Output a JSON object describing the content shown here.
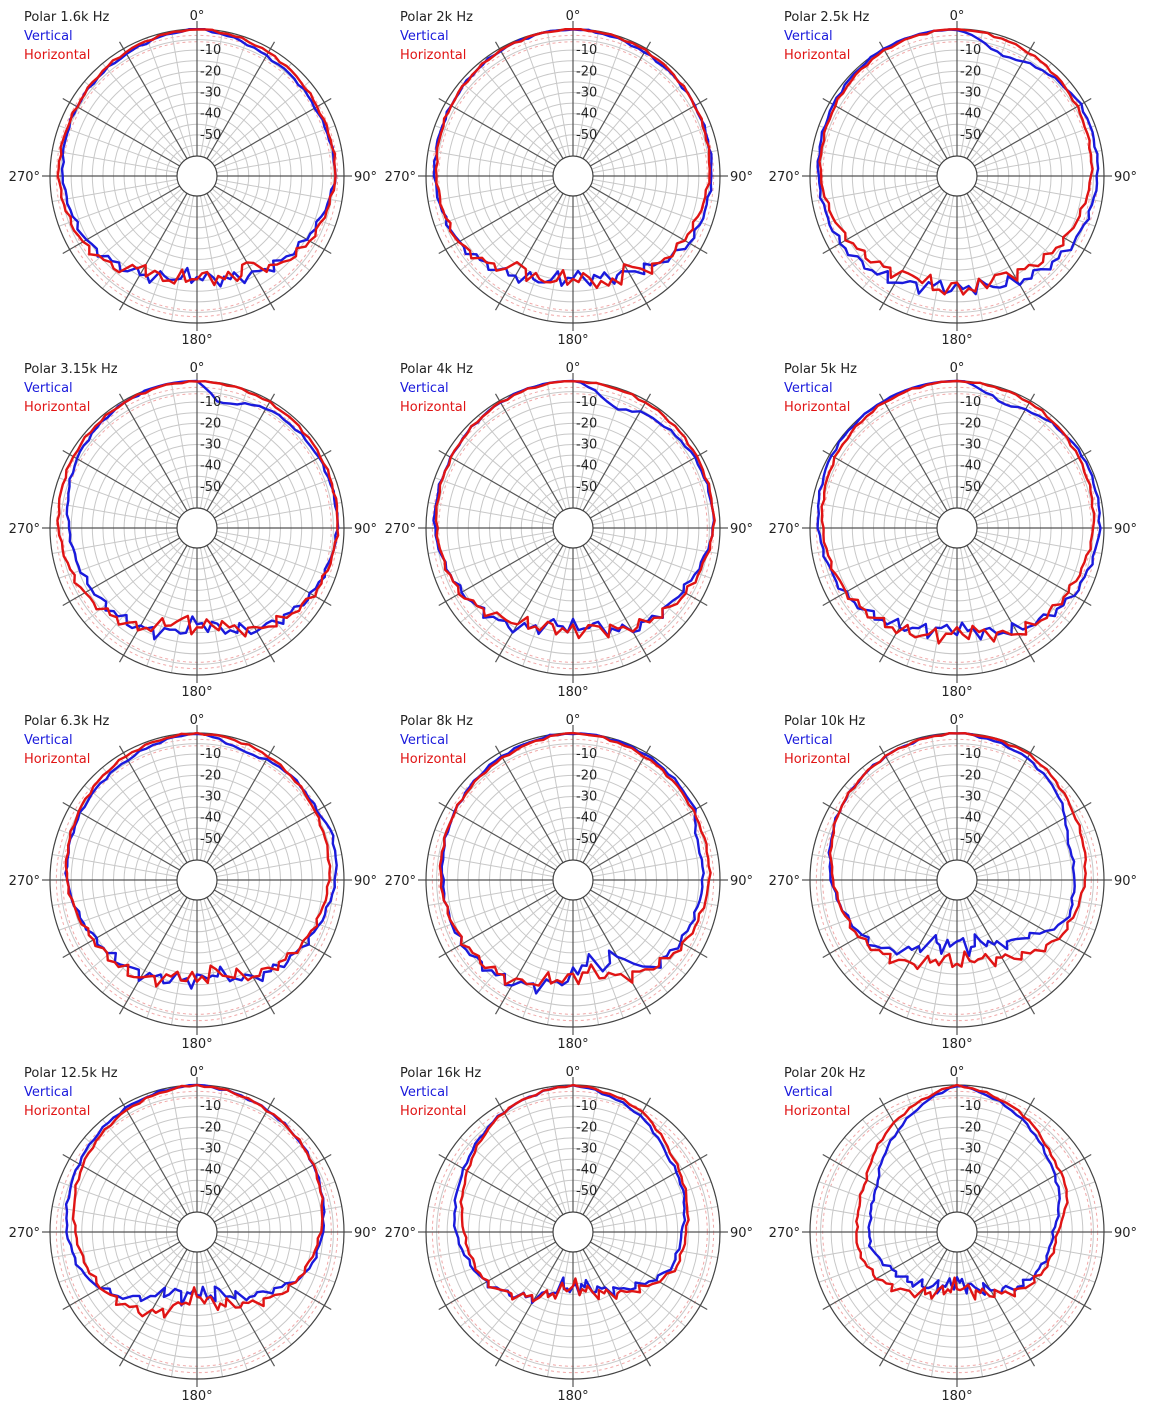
{
  "colors": {
    "vertical": "#1a1adc",
    "horizontal": "#e01414",
    "grid": "#c8c8c8",
    "spoke": "#555555",
    "dashed": "#f0a8a8",
    "frame": "#444444"
  },
  "angle_labels": {
    "top": "0°",
    "right": "90°",
    "bottom": "180°",
    "left": "270°"
  },
  "ring_labels": [
    "-10",
    "-20",
    "-30",
    "-40",
    "-50"
  ],
  "chart_data": [
    {
      "type": "polar",
      "title": "Polar 1.6k Hz",
      "r_range": [
        -60,
        0
      ],
      "series": [
        {
          "name": "Vertical",
          "key": "vertical",
          "angles": [
            0,
            30,
            60,
            90,
            120,
            150,
            170,
            180,
            190,
            210,
            240,
            270,
            300,
            330
          ],
          "values": [
            0,
            -4,
            -5,
            -4,
            -10,
            -16,
            -20,
            -22,
            -21,
            -16,
            -9,
            -6,
            -4,
            -3
          ]
        },
        {
          "name": "Horizontal",
          "key": "horizontal",
          "angles": [
            0,
            30,
            60,
            90,
            120,
            140,
            150,
            160,
            170,
            180,
            190,
            200,
            210,
            220,
            240,
            270,
            300,
            330
          ],
          "values": [
            0,
            -2,
            -4,
            -4,
            -8,
            -13,
            -22,
            -18,
            -21,
            -22,
            -20,
            -18,
            -20,
            -12,
            -7,
            -4,
            -4,
            -2
          ]
        }
      ]
    },
    {
      "type": "polar",
      "title": "Polar 2k Hz",
      "r_range": [
        -60,
        0
      ],
      "series": [
        {
          "name": "Vertical",
          "key": "vertical",
          "angles": [
            0,
            30,
            60,
            90,
            120,
            150,
            180,
            210,
            240,
            270,
            300,
            330
          ],
          "values": [
            0,
            -2,
            -3,
            -4,
            -6,
            -17,
            -22,
            -15,
            -7,
            -4,
            -3,
            -1
          ]
        },
        {
          "name": "Horizontal",
          "key": "horizontal",
          "angles": [
            0,
            30,
            60,
            90,
            120,
            140,
            150,
            160,
            170,
            180,
            190,
            200,
            210,
            220,
            240,
            270,
            300,
            330
          ],
          "values": [
            0,
            -1,
            -3,
            -5,
            -9,
            -12,
            -20,
            -14,
            -20,
            -21,
            -20,
            -17,
            -21,
            -13,
            -7,
            -5,
            -3,
            -1
          ]
        }
      ]
    },
    {
      "type": "polar",
      "title": "Polar 2.5k Hz",
      "r_range": [
        -60,
        0
      ],
      "series": [
        {
          "name": "Vertical",
          "key": "vertical",
          "angles": [
            0,
            20,
            40,
            60,
            90,
            120,
            150,
            170,
            180,
            190,
            210,
            240,
            270,
            300,
            330
          ],
          "values": [
            0,
            -9,
            -5,
            -2,
            -3,
            -6,
            -12,
            -17,
            -16,
            -17,
            -12,
            -6,
            -4,
            -2,
            0
          ]
        },
        {
          "name": "Horizontal",
          "key": "horizontal",
          "angles": [
            0,
            30,
            60,
            90,
            110,
            130,
            150,
            160,
            170,
            180,
            190,
            200,
            210,
            230,
            250,
            270,
            300,
            330
          ],
          "values": [
            0,
            -2,
            -4,
            -6,
            -9,
            -12,
            -16,
            -19,
            -15,
            -17,
            -15,
            -19,
            -16,
            -12,
            -8,
            -5,
            -3,
            -1
          ]
        }
      ]
    },
    {
      "type": "polar",
      "title": "Polar 3.15k Hz",
      "r_range": [
        -60,
        0
      ],
      "series": [
        {
          "name": "Vertical",
          "key": "vertical",
          "angles": [
            0,
            10,
            20,
            30,
            60,
            90,
            120,
            150,
            170,
            180,
            190,
            210,
            240,
            270,
            300,
            330
          ],
          "values": [
            1,
            -10,
            -7,
            -4,
            -3,
            -3,
            -7,
            -14,
            -22,
            -25,
            -20,
            -15,
            -12,
            -9,
            -4,
            -1
          ]
        },
        {
          "name": "Horizontal",
          "key": "horizontal",
          "angles": [
            0,
            30,
            60,
            90,
            120,
            150,
            170,
            180,
            190,
            210,
            240,
            270,
            300,
            330
          ],
          "values": [
            0,
            -1,
            -2,
            -3,
            -6,
            -14,
            -24,
            -22,
            -26,
            -15,
            -8,
            -4,
            -2,
            -1
          ]
        }
      ]
    },
    {
      "type": "polar",
      "title": "Polar 4k Hz",
      "r_range": [
        -60,
        0
      ],
      "series": [
        {
          "name": "Vertical",
          "key": "vertical",
          "angles": [
            0,
            20,
            30,
            60,
            90,
            120,
            150,
            170,
            180,
            190,
            210,
            240,
            270,
            300,
            330
          ],
          "values": [
            1,
            -10,
            -6,
            -3,
            -3,
            -10,
            -14,
            -23,
            -22,
            -24,
            -15,
            -9,
            -4,
            -3,
            -1
          ]
        },
        {
          "name": "Horizontal",
          "key": "horizontal",
          "angles": [
            0,
            30,
            60,
            90,
            120,
            150,
            170,
            180,
            190,
            210,
            240,
            270,
            300,
            330
          ],
          "values": [
            0,
            -1,
            -2,
            -3,
            -8,
            -15,
            -22,
            -20,
            -22,
            -18,
            -8,
            -5,
            -3,
            -1
          ]
        }
      ]
    },
    {
      "type": "polar",
      "title": "Polar 5k Hz",
      "r_range": [
        -60,
        0
      ],
      "series": [
        {
          "name": "Vertical",
          "key": "vertical",
          "angles": [
            0,
            20,
            40,
            60,
            90,
            120,
            150,
            170,
            180,
            190,
            210,
            240,
            270,
            300,
            330
          ],
          "values": [
            1,
            -7,
            -3,
            -1,
            -2,
            -6,
            -14,
            -20,
            -22,
            -21,
            -16,
            -8,
            -4,
            -1,
            0
          ]
        },
        {
          "name": "Horizontal",
          "key": "horizontal",
          "angles": [
            0,
            30,
            60,
            90,
            120,
            150,
            170,
            180,
            190,
            210,
            240,
            270,
            300,
            330
          ],
          "values": [
            0,
            -1,
            -3,
            -5,
            -9,
            -12,
            -20,
            -20,
            -18,
            -14,
            -9,
            -6,
            -3,
            -1
          ]
        }
      ]
    },
    {
      "type": "polar",
      "title": "Polar 6.3k Hz",
      "r_range": [
        -60,
        0
      ],
      "series": [
        {
          "name": "Vertical",
          "key": "vertical",
          "angles": [
            0,
            20,
            40,
            60,
            70,
            90,
            120,
            150,
            170,
            180,
            190,
            210,
            240,
            270,
            300,
            330
          ],
          "values": [
            0,
            -5,
            -3,
            -4,
            -2,
            -4,
            -10,
            -16,
            -25,
            -22,
            -22,
            -18,
            -14,
            -8,
            -6,
            -4
          ]
        },
        {
          "name": "Horizontal",
          "key": "horizontal",
          "angles": [
            0,
            30,
            60,
            90,
            120,
            150,
            170,
            180,
            190,
            210,
            240,
            270,
            300,
            330
          ],
          "values": [
            0,
            -2,
            -5,
            -7,
            -11,
            -17,
            -26,
            -22,
            -24,
            -16,
            -13,
            -8,
            -5,
            -2
          ]
        }
      ]
    },
    {
      "type": "polar",
      "title": "Polar 8k Hz",
      "r_range": [
        -60,
        0
      ],
      "series": [
        {
          "name": "Vertical",
          "key": "vertical",
          "angles": [
            0,
            30,
            60,
            70,
            90,
            120,
            140,
            150,
            160,
            170,
            180,
            190,
            210,
            240,
            270,
            300,
            330
          ],
          "values": [
            0,
            -1,
            -3,
            -8,
            -8,
            -11,
            -14,
            -30,
            -25,
            -32,
            -24,
            -20,
            -13,
            -9,
            -8,
            -5,
            -2
          ]
        },
        {
          "name": "Horizontal",
          "key": "horizontal",
          "angles": [
            0,
            30,
            60,
            90,
            120,
            150,
            170,
            180,
            190,
            210,
            240,
            270,
            300,
            330
          ],
          "values": [
            0,
            -2,
            -4,
            -5,
            -9,
            -17,
            -26,
            -23,
            -22,
            -14,
            -10,
            -7,
            -5,
            -3
          ]
        }
      ]
    },
    {
      "type": "polar",
      "title": "Polar 10k Hz",
      "r_range": [
        -60,
        0
      ],
      "series": [
        {
          "name": "Vertical",
          "key": "vertical",
          "angles": [
            0,
            30,
            50,
            70,
            90,
            110,
            130,
            150,
            160,
            170,
            180,
            190,
            200,
            210,
            230,
            270,
            300,
            330
          ],
          "values": [
            0,
            -3,
            -7,
            -14,
            -14,
            -14,
            -28,
            -34,
            -40,
            -36,
            -42,
            -36,
            -40,
            -32,
            -20,
            -10,
            -5,
            -2
          ]
        },
        {
          "name": "Horizontal",
          "key": "horizontal",
          "angles": [
            0,
            30,
            60,
            90,
            120,
            150,
            170,
            180,
            190,
            210,
            240,
            270,
            300,
            330
          ],
          "values": [
            0,
            -1,
            -6,
            -9,
            -14,
            -27,
            -32,
            -30,
            -32,
            -24,
            -16,
            -11,
            -5,
            -2
          ]
        }
      ]
    },
    {
      "type": "polar",
      "title": "Polar 12.5k Hz",
      "r_range": [
        -60,
        0
      ],
      "series": [
        {
          "name": "Vertical",
          "key": "vertical",
          "angles": [
            0,
            30,
            60,
            90,
            110,
            130,
            150,
            160,
            170,
            180,
            190,
            200,
            210,
            230,
            250,
            270,
            300,
            330
          ],
          "values": [
            0,
            -3,
            -6,
            -10,
            -14,
            -26,
            -34,
            -40,
            -38,
            -42,
            -38,
            -40,
            -36,
            -22,
            -12,
            -8,
            -5,
            -2
          ]
        },
        {
          "name": "Horizontal",
          "key": "horizontal",
          "angles": [
            0,
            30,
            60,
            90,
            120,
            150,
            170,
            180,
            190,
            210,
            240,
            270,
            300,
            330
          ],
          "values": [
            0,
            -3,
            -6,
            -11,
            -18,
            -30,
            -36,
            -40,
            -36,
            -25,
            -17,
            -12,
            -7,
            -3
          ]
        }
      ]
    },
    {
      "type": "polar",
      "title": "Polar 16k Hz",
      "r_range": [
        -60,
        0
      ],
      "series": [
        {
          "name": "Vertical",
          "key": "vertical",
          "angles": [
            0,
            30,
            50,
            70,
            90,
            110,
            130,
            150,
            170,
            180,
            190,
            210,
            240,
            270,
            300,
            330
          ],
          "values": [
            0,
            -6,
            -12,
            -14,
            -18,
            -20,
            -30,
            -38,
            -44,
            -42,
            -44,
            -34,
            -22,
            -14,
            -10,
            -4
          ]
        },
        {
          "name": "Horizontal",
          "key": "horizontal",
          "angles": [
            0,
            30,
            50,
            70,
            90,
            110,
            130,
            150,
            170,
            180,
            190,
            210,
            240,
            270,
            300,
            330
          ],
          "values": [
            0,
            -4,
            -10,
            -13,
            -16,
            -18,
            -28,
            -36,
            -42,
            -44,
            -42,
            -34,
            -22,
            -18,
            -12,
            -4
          ]
        }
      ]
    },
    {
      "type": "polar",
      "title": "Polar 20k Hz",
      "r_range": [
        -60,
        0
      ],
      "series": [
        {
          "name": "Vertical",
          "key": "vertical",
          "angles": [
            0,
            30,
            50,
            70,
            90,
            110,
            130,
            150,
            170,
            180,
            190,
            210,
            240,
            260,
            280,
            300,
            330
          ],
          "values": [
            0,
            -8,
            -14,
            -18,
            -24,
            -26,
            -30,
            -38,
            -44,
            -46,
            -44,
            -40,
            -34,
            -28,
            -28,
            -26,
            -14
          ]
        },
        {
          "name": "Horizontal",
          "key": "horizontal",
          "angles": [
            0,
            30,
            50,
            70,
            90,
            110,
            130,
            150,
            170,
            180,
            190,
            210,
            240,
            260,
            280,
            300,
            330
          ],
          "values": [
            0,
            -6,
            -12,
            -14,
            -22,
            -24,
            -28,
            -36,
            -42,
            -44,
            -42,
            -36,
            -26,
            -22,
            -22,
            -20,
            -10
          ]
        }
      ]
    }
  ]
}
